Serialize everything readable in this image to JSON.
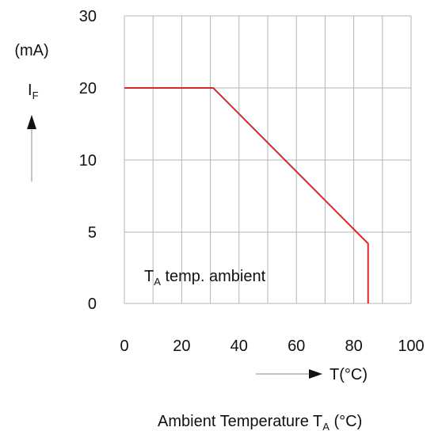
{
  "chart_data": {
    "type": "line",
    "y_unit": "(mA)",
    "y_symbol": "I",
    "y_symbol_sub": "F",
    "x_unit": "T(°C)",
    "xlabel_main": "Ambient Temperature T",
    "xlabel_sub": "A",
    "xlabel_tail": " (°C)",
    "annotation_main": "T",
    "annotation_sub": "A",
    "annotation_tail": " temp. ambient",
    "x_ticks": [
      0,
      20,
      40,
      60,
      80,
      100
    ],
    "y_ticks": [
      0,
      5,
      10,
      20,
      30
    ],
    "xlim": [
      0,
      100
    ],
    "grid": true,
    "line_color": "#d42a2a",
    "series": [
      {
        "x": [
          0,
          31,
          85,
          85
        ],
        "y": [
          20,
          20,
          4.2,
          0
        ]
      }
    ]
  }
}
